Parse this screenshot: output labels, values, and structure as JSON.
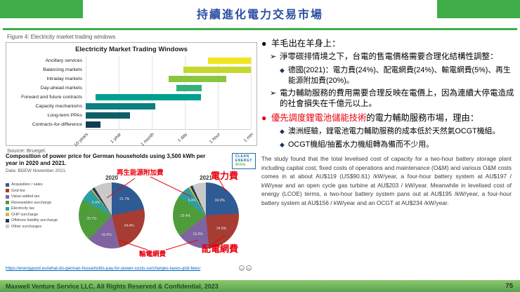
{
  "slide": {
    "title": "持續進化電力交易市場",
    "footer": "Maxwell Venture Service LLC, All Rights Reserved & Confidential, 2023",
    "page_number": "75"
  },
  "figure": {
    "caption": "Figure 4: Electricity market trading windows",
    "source": "Source: Bruegel."
  },
  "logo": {
    "l1": "CLEAN",
    "l2": "ENERGY",
    "l3": "WIRE"
  },
  "chart_data": [
    {
      "type": "bar",
      "title": "Electricity Market Trading Windows",
      "orientation": "horizontal-range",
      "x_ticks": [
        "10 years",
        "1 year",
        "1 month",
        "1 day",
        "1 hour",
        "1 min"
      ],
      "grid": true,
      "bars": [
        {
          "label": "Ancillary services",
          "start": 0.74,
          "end": 1.0,
          "color": "#f2e51f"
        },
        {
          "label": "Balancing markets",
          "start": 0.59,
          "end": 1.0,
          "color": "#c5d92d"
        },
        {
          "label": "Intraday markets",
          "start": 0.5,
          "end": 0.85,
          "color": "#8cc63e"
        },
        {
          "label": "Day-ahead markets",
          "start": 0.55,
          "end": 0.7,
          "color": "#34b27b"
        },
        {
          "label": "Forward and future contracts",
          "start": 0.06,
          "end": 0.7,
          "color": "#00a091"
        },
        {
          "label": "Capacity mechanisms",
          "start": 0.0,
          "end": 0.42,
          "color": "#0c7f80"
        },
        {
          "label": "Long-term PPAs",
          "start": 0.0,
          "end": 0.27,
          "color": "#0f5e66"
        },
        {
          "label": "Contracts-for-difference",
          "start": 0.0,
          "end": 0.09,
          "color": "#123c50"
        }
      ]
    },
    {
      "type": "pie",
      "title": "Composition of power price for German households using 3,500 kWh per year in 2020 and 2021.",
      "data_note": "Data: BDEW November 2021.",
      "categories": [
        "Acquisition / sales",
        "Grid fee",
        "Value-added tax",
        "Renewables surcharge",
        "Electricity tax",
        "CHP surcharge",
        "Offshore liability surcharge",
        "Other surcharges"
      ],
      "colors": [
        "#2f5b94",
        "#a63c32",
        "#8064a2",
        "#4f9d3a",
        "#2ca0a0",
        "#e2b53a",
        "#1b3a5c",
        "#c9c9c9"
      ],
      "legend_position": "left",
      "pies": [
        {
          "label": "2020",
          "values": [
            21.7,
            24.4,
            16.0,
            20.7,
            6.4,
            0.7,
            1.3,
            8.8
          ]
        },
        {
          "label": "2021",
          "values": [
            24.0,
            24.5,
            16.0,
            20.4,
            6.4,
            0.8,
            1.2,
            6.7
          ]
        }
      ]
    }
  ],
  "annotations": {
    "renewables": "再生能源附加費",
    "power_fee": "電力費",
    "transmission_fee": "輸電網費",
    "distribution_fee": "配電網費"
  },
  "link_row": {
    "url": "https://energypost.eu/what-do-german-households-pay-for-power-costs-surcharges-taxes-grid-fees/",
    "cc1": "cc",
    "cc2": "by"
  },
  "right_panel": {
    "marker_dot": "●",
    "marker_arrow": "➢",
    "marker_diamond": "◆",
    "bullet1": "羊毛出在羊身上：",
    "sub1a": "淨零碳排情境之下，台電的售電價格需要合理化結構性調整：",
    "sub1a1": "德國(2021)：電力費(24%)、配電網費(24%)、輸電網費(5%)、再生能源附加費(20%)。",
    "sub1b": "電力輔助服務的費用需要合理反映在電價上，因為連續大停電造成的社會損失在千億元以上。",
    "bullet2_red": "優先調度鋰電池儲能技術",
    "bullet2_black": "的電力輔助服務市場，理由：",
    "sub2a": "澳洲經驗，鋰電池電力輔助服務的成本低於天然氣OCGT機組。",
    "sub2b": "OCGT機組/抽蓄水力機組轉為備而不少用。",
    "study_text": "The study found that the total levelised cost of capacity for a two-hour battery storage plant including capital cost, fixed costs of operations and maintenance (O&M) and various O&M costs comes in at about AU$119 (US$90.61) /kW/year, a four-hour battery system at AU$197 / kW/year and an open cycle gas turbine at AU$203 / kW/year. Meanwhile in levelised cost of energy (LCOE) terms, a two-hour battery system pans out at AU$195 /kW/year, a four-hour battery system at AU$156 / kW/year and an OCGT at AU$234 /kW/year."
  }
}
